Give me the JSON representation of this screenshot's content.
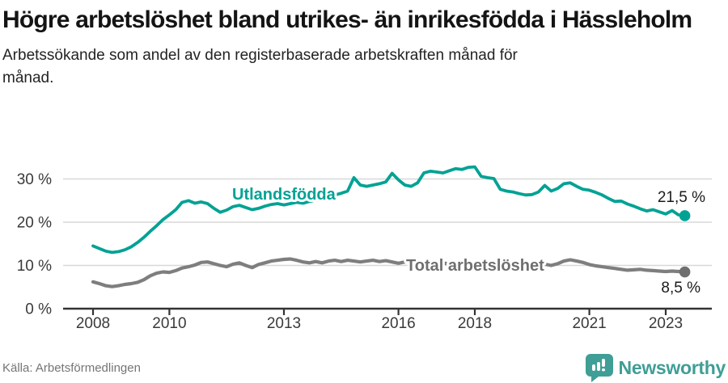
{
  "header": {
    "title": "Högre arbetslöshet bland utrikes- än inrikesfödda i Hässleholm",
    "subtitle": "Arbetssökande som andel av den registerbaserade arbetskraften månad för månad."
  },
  "footer": {
    "source": "Källa: Arbetsförmedlingen",
    "brand": "Newsworthy"
  },
  "colors": {
    "accent_teal": "#00a294",
    "line_gray": "#7e7e7e",
    "label_gray": "#6f6f6f",
    "brand_teal": "#3f9e96",
    "grid": "#d8d8d8",
    "axis": "#333333"
  },
  "chart_data": {
    "type": "line",
    "title": "Högre arbetslöshet bland utrikes- än inrikesfödda i Hässleholm",
    "subtitle": "Arbetssökande som andel av den registerbaserade arbetskraften månad för månad.",
    "unit": "%",
    "x_axis": {
      "start_year": 2008,
      "step_months": 2,
      "tick_years": [
        2008,
        2010,
        2013,
        2016,
        2018,
        2021,
        2023
      ],
      "tick_labels": [
        "2008",
        "2010",
        "2013",
        "2016",
        "2018",
        "2021",
        "2023"
      ]
    },
    "y_axis": {
      "ticks": [
        0,
        10,
        20,
        30
      ],
      "tick_labels": [
        "0 %",
        "10 %",
        "20 %",
        "30 %"
      ],
      "range": [
        0,
        34
      ],
      "grid": true
    },
    "legend_position": "inline-labels",
    "series": [
      {
        "name": "Utlandsfödda",
        "color": "#00a294",
        "end_label": "21,5 %",
        "end_value": 21.5,
        "values": [
          14.5,
          13.9,
          13.3,
          13.0,
          13.2,
          13.6,
          14.3,
          15.3,
          16.5,
          17.9,
          19.2,
          20.6,
          21.7,
          22.9,
          24.6,
          25.0,
          24.4,
          24.7,
          24.3,
          23.2,
          22.3,
          22.8,
          23.6,
          23.9,
          23.4,
          22.9,
          23.2,
          23.7,
          24.1,
          24.3,
          24.0,
          24.3,
          24.6,
          24.4,
          24.8,
          25.1,
          25.4,
          25.8,
          26.3,
          26.7,
          27.2,
          30.3,
          28.6,
          28.3,
          28.6,
          28.9,
          29.3,
          31.3,
          29.8,
          28.6,
          28.3,
          29.1,
          31.4,
          31.8,
          31.6,
          31.4,
          31.9,
          32.4,
          32.2,
          32.7,
          32.8,
          30.6,
          30.3,
          30.1,
          27.6,
          27.2,
          27.0,
          26.6,
          26.3,
          26.4,
          27.0,
          28.5,
          27.2,
          27.8,
          28.9,
          29.1,
          28.3,
          27.6,
          27.4,
          26.9,
          26.3,
          25.5,
          24.8,
          24.9,
          24.2,
          23.7,
          23.1,
          22.6,
          22.9,
          22.4,
          21.9,
          22.7,
          21.7,
          21.5
        ]
      },
      {
        "name": "Total arbetslöshet",
        "color": "#7e7e7e",
        "end_label": "8,5 %",
        "end_value": 8.5,
        "values": [
          6.2,
          5.8,
          5.3,
          5.1,
          5.3,
          5.6,
          5.8,
          6.1,
          6.7,
          7.6,
          8.2,
          8.5,
          8.4,
          8.8,
          9.4,
          9.7,
          10.1,
          10.7,
          10.8,
          10.4,
          10.0,
          9.7,
          10.3,
          10.6,
          10.0,
          9.5,
          10.2,
          10.6,
          11.0,
          11.2,
          11.4,
          11.5,
          11.2,
          10.8,
          10.6,
          10.9,
          10.6,
          11.0,
          11.2,
          10.9,
          11.2,
          11.0,
          10.8,
          11.0,
          11.2,
          10.9,
          11.1,
          10.8,
          10.5,
          10.8,
          10.9,
          10.6,
          10.8,
          10.5,
          10.4,
          10.6,
          10.3,
          10.1,
          10.4,
          10.5,
          10.3,
          10.0,
          10.2,
          9.9,
          10.1,
          9.8,
          9.7,
          9.9,
          9.6,
          9.8,
          10.1,
          10.3,
          10.0,
          10.4,
          11.0,
          11.3,
          11.0,
          10.7,
          10.2,
          9.9,
          9.7,
          9.5,
          9.3,
          9.1,
          8.9,
          9.0,
          9.1,
          8.9,
          8.8,
          8.7,
          8.6,
          8.7,
          8.6,
          8.5
        ]
      }
    ]
  }
}
